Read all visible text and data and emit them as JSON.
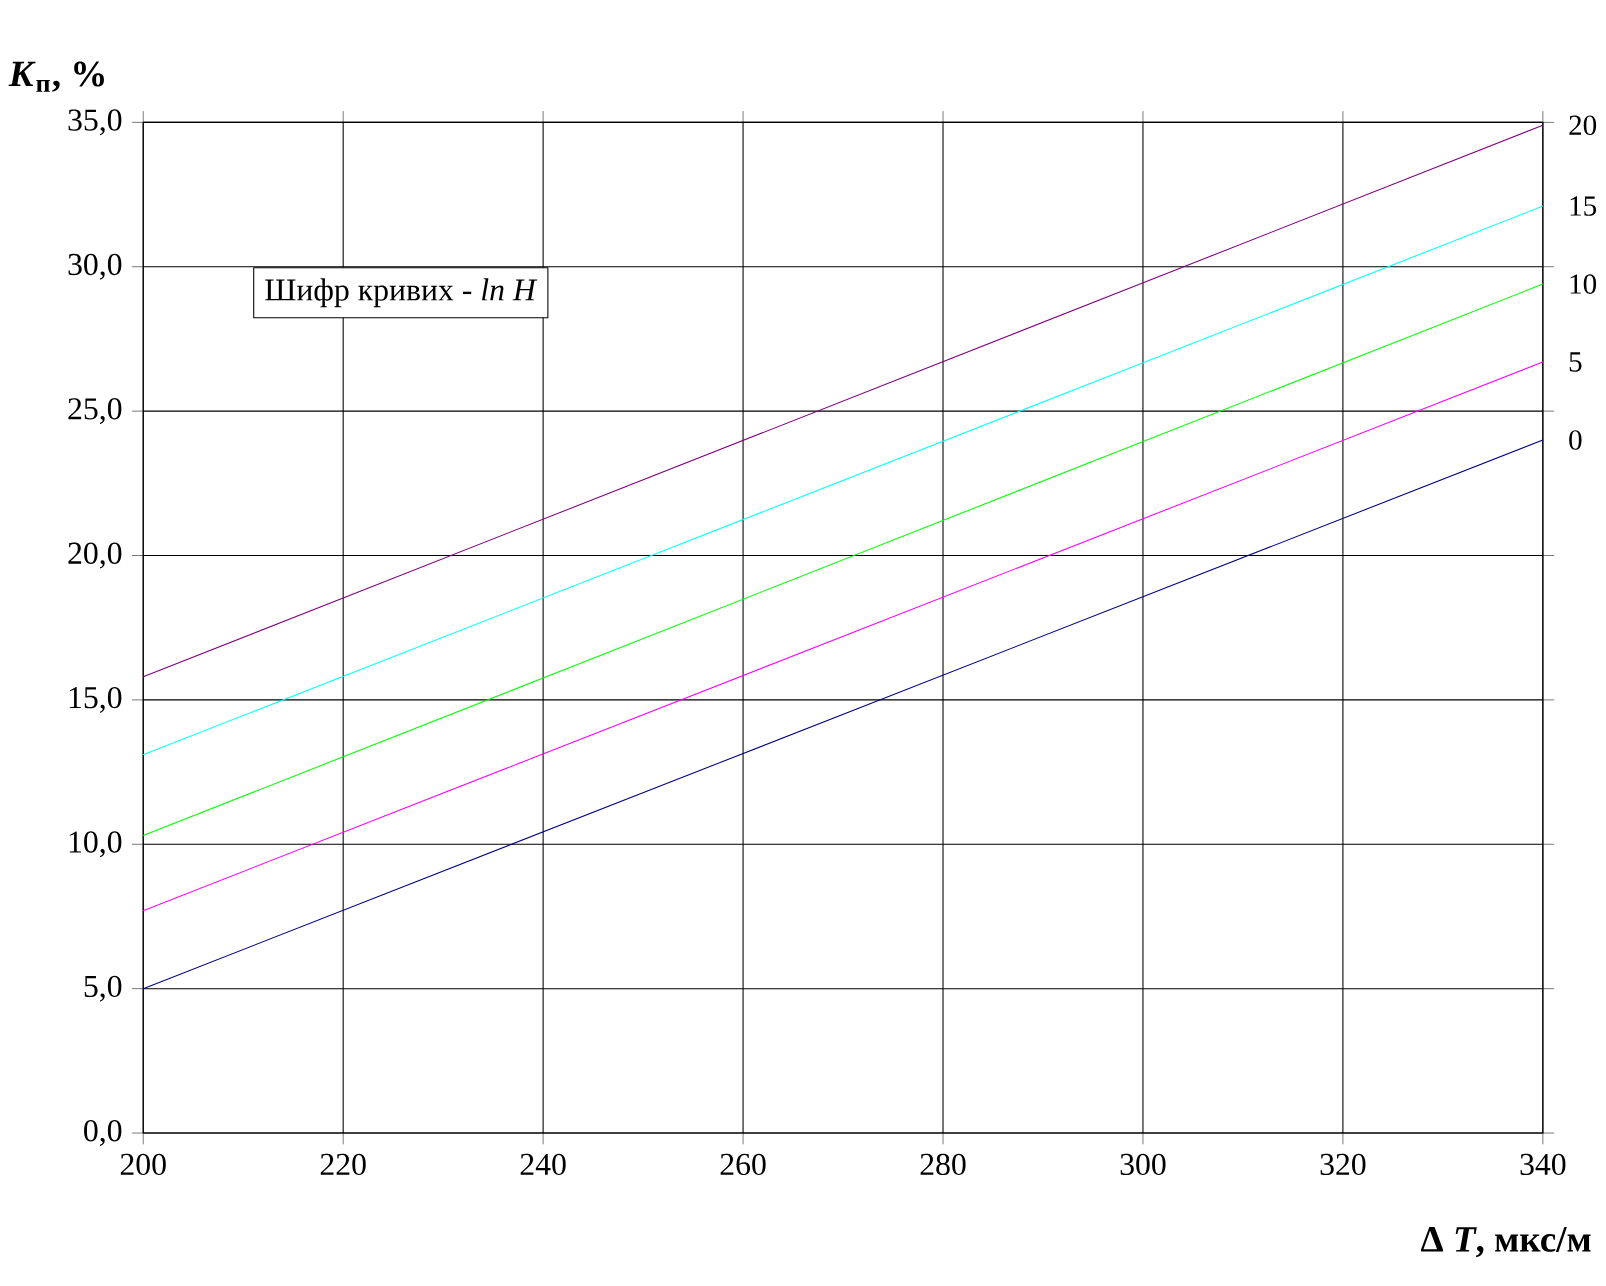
{
  "chart_data": {
    "type": "line",
    "xlabel": "Δ *T*, мкс/м",
    "ylabel": "*K*$_{п}$, %",
    "annotations": [
      "Шифр кривих  -  *ln H*"
    ],
    "x": [
      200,
      340
    ],
    "series": [
      {
        "name": "0",
        "color": "#000080",
        "values": [
          5.0,
          24.0
        ]
      },
      {
        "name": "5",
        "color": "#ff00ff",
        "values": [
          7.7,
          26.7
        ]
      },
      {
        "name": "10",
        "color": "#00ff00",
        "values": [
          10.3,
          29.4
        ]
      },
      {
        "name": "15",
        "color": "#00ffff",
        "values": [
          13.1,
          32.1
        ]
      },
      {
        "name": "20",
        "color": "#800080",
        "values": [
          15.8,
          34.9
        ]
      }
    ],
    "xlim": [
      200,
      340
    ],
    "xticks": [
      200,
      220,
      240,
      260,
      280,
      300,
      320,
      340
    ],
    "ylim": [
      0,
      35
    ],
    "yticks": [
      {
        "value": 0,
        "label": "0,0"
      },
      {
        "value": 5,
        "label": "5,0"
      },
      {
        "value": 10,
        "label": "10,0"
      },
      {
        "value": 15,
        "label": "15,0"
      },
      {
        "value": 20,
        "label": "20,0"
      },
      {
        "value": 25,
        "label": "25,0"
      },
      {
        "value": 30,
        "label": "30,0"
      },
      {
        "value": 35,
        "label": "35,0"
      }
    ],
    "grid": true,
    "marker": "none",
    "line_style": "solid"
  }
}
